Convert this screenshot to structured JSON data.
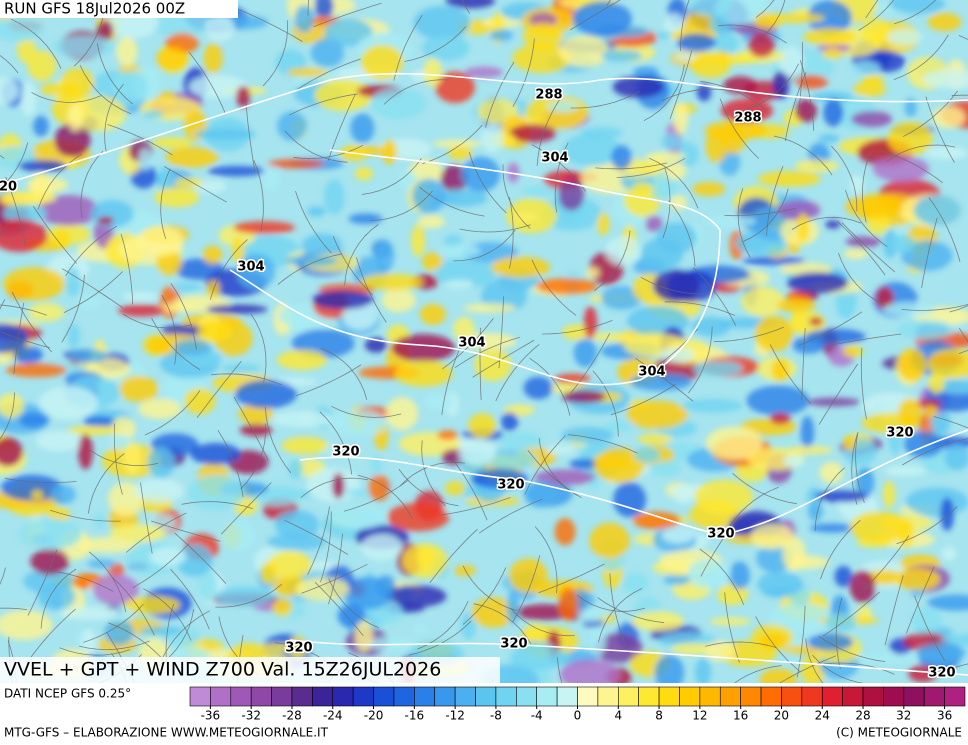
{
  "header": {
    "run": "RUN GFS 18Jul2026 00Z"
  },
  "map": {
    "contour_labels": [
      "20",
      "288",
      "288",
      "304",
      "304",
      "304",
      "304",
      "320",
      "320",
      "320",
      "320",
      "320",
      "320",
      "320"
    ]
  },
  "footer": {
    "title": "VVEL + GPT + WIND Z700 Val. 15Z26JUL2026",
    "source": "DATI NCEP GFS 0.25°",
    "credit_left": "MTG-GFS – ELABORAZIONE WWW.METEOGIORNALE.IT",
    "credit_right": "(C) METEOGIORNALE"
  },
  "colorbar": {
    "range": [
      -38,
      38
    ],
    "ticks": [
      -36,
      -32,
      -28,
      -24,
      -20,
      -16,
      -12,
      -8,
      -4,
      0,
      4,
      8,
      12,
      16,
      20,
      24,
      28,
      32,
      36
    ],
    "colors": [
      "#c08ad8",
      "#b070c8",
      "#a058b8",
      "#9048a8",
      "#7a3c9c",
      "#5a2c90",
      "#3a2498",
      "#2a28b0",
      "#1e38c8",
      "#1a50d8",
      "#1e66e0",
      "#2a80e8",
      "#3898ee",
      "#4cb0f0",
      "#5cc4f0",
      "#70d4f0",
      "#88e0f0",
      "#a8ecf4",
      "#c8f4f4",
      "#fffbc0",
      "#fff590",
      "#fff060",
      "#ffe830",
      "#ffdc10",
      "#ffcc00",
      "#ffb800",
      "#ffa000",
      "#ff8800",
      "#ff6c00",
      "#f85010",
      "#f03820",
      "#e02030",
      "#c81838",
      "#b01040",
      "#a00c50",
      "#901060",
      "#a01870",
      "#b02080"
    ]
  }
}
